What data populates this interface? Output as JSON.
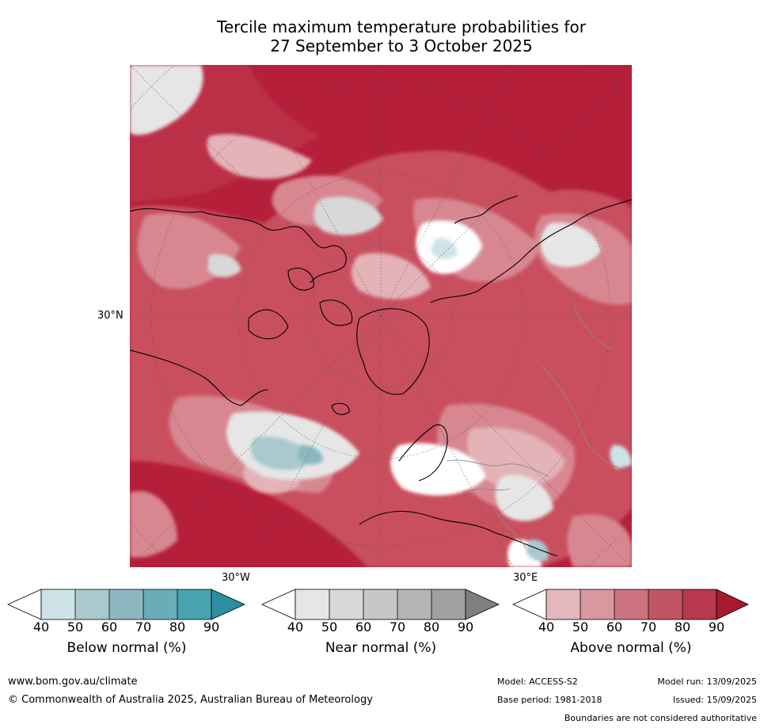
{
  "title": {
    "line1": "Tercile maximum temperature probabilities for",
    "line2": "27 September to 3 October 2025"
  },
  "map": {
    "lat_label": "30°N",
    "lon_labels": [
      "30°W",
      "30°E"
    ],
    "colors": {
      "ocean_high": "#b51f3a",
      "mid": "#c9505f",
      "light": "#d88791",
      "pale": "#e3b3b8",
      "near": "#dcdcdc",
      "below": "#a7c9cf"
    }
  },
  "colorbars": [
    {
      "label": "Below normal (%)",
      "ticks": [
        "40",
        "50",
        "60",
        "70",
        "80",
        "90"
      ],
      "colors": [
        "#ffffff",
        "#cde3e8",
        "#a9c9cf",
        "#8cb7c1",
        "#6aadb8",
        "#48a3b1",
        "#2b8fa2"
      ]
    },
    {
      "label": "Near normal (%)",
      "ticks": [
        "40",
        "50",
        "60",
        "70",
        "80",
        "90"
      ],
      "colors": [
        "#ffffff",
        "#e6e6e6",
        "#d7d7d7",
        "#c7c7c7",
        "#b5b5b5",
        "#a1a1a1",
        "#7f7f7f"
      ]
    },
    {
      "label": "Above normal (%)",
      "ticks": [
        "40",
        "50",
        "60",
        "70",
        "80",
        "90"
      ],
      "colors": [
        "#ffffff",
        "#e3b7bc",
        "#d9979f",
        "#cd737f",
        "#c25565",
        "#b8384d",
        "#a8182f"
      ]
    }
  ],
  "footer": {
    "website": "www.bom.gov.au/climate",
    "copyright": "© Commonwealth of Australia 2025, Australian Bureau of Meteorology",
    "model": "Model: ACCESS-S2",
    "base_period": "Base period: 1981-2018",
    "model_run": "Model run: 13/09/2025",
    "issued": "Issued: 15/09/2025",
    "disclaimer": "Boundaries are not considered authoritative"
  }
}
